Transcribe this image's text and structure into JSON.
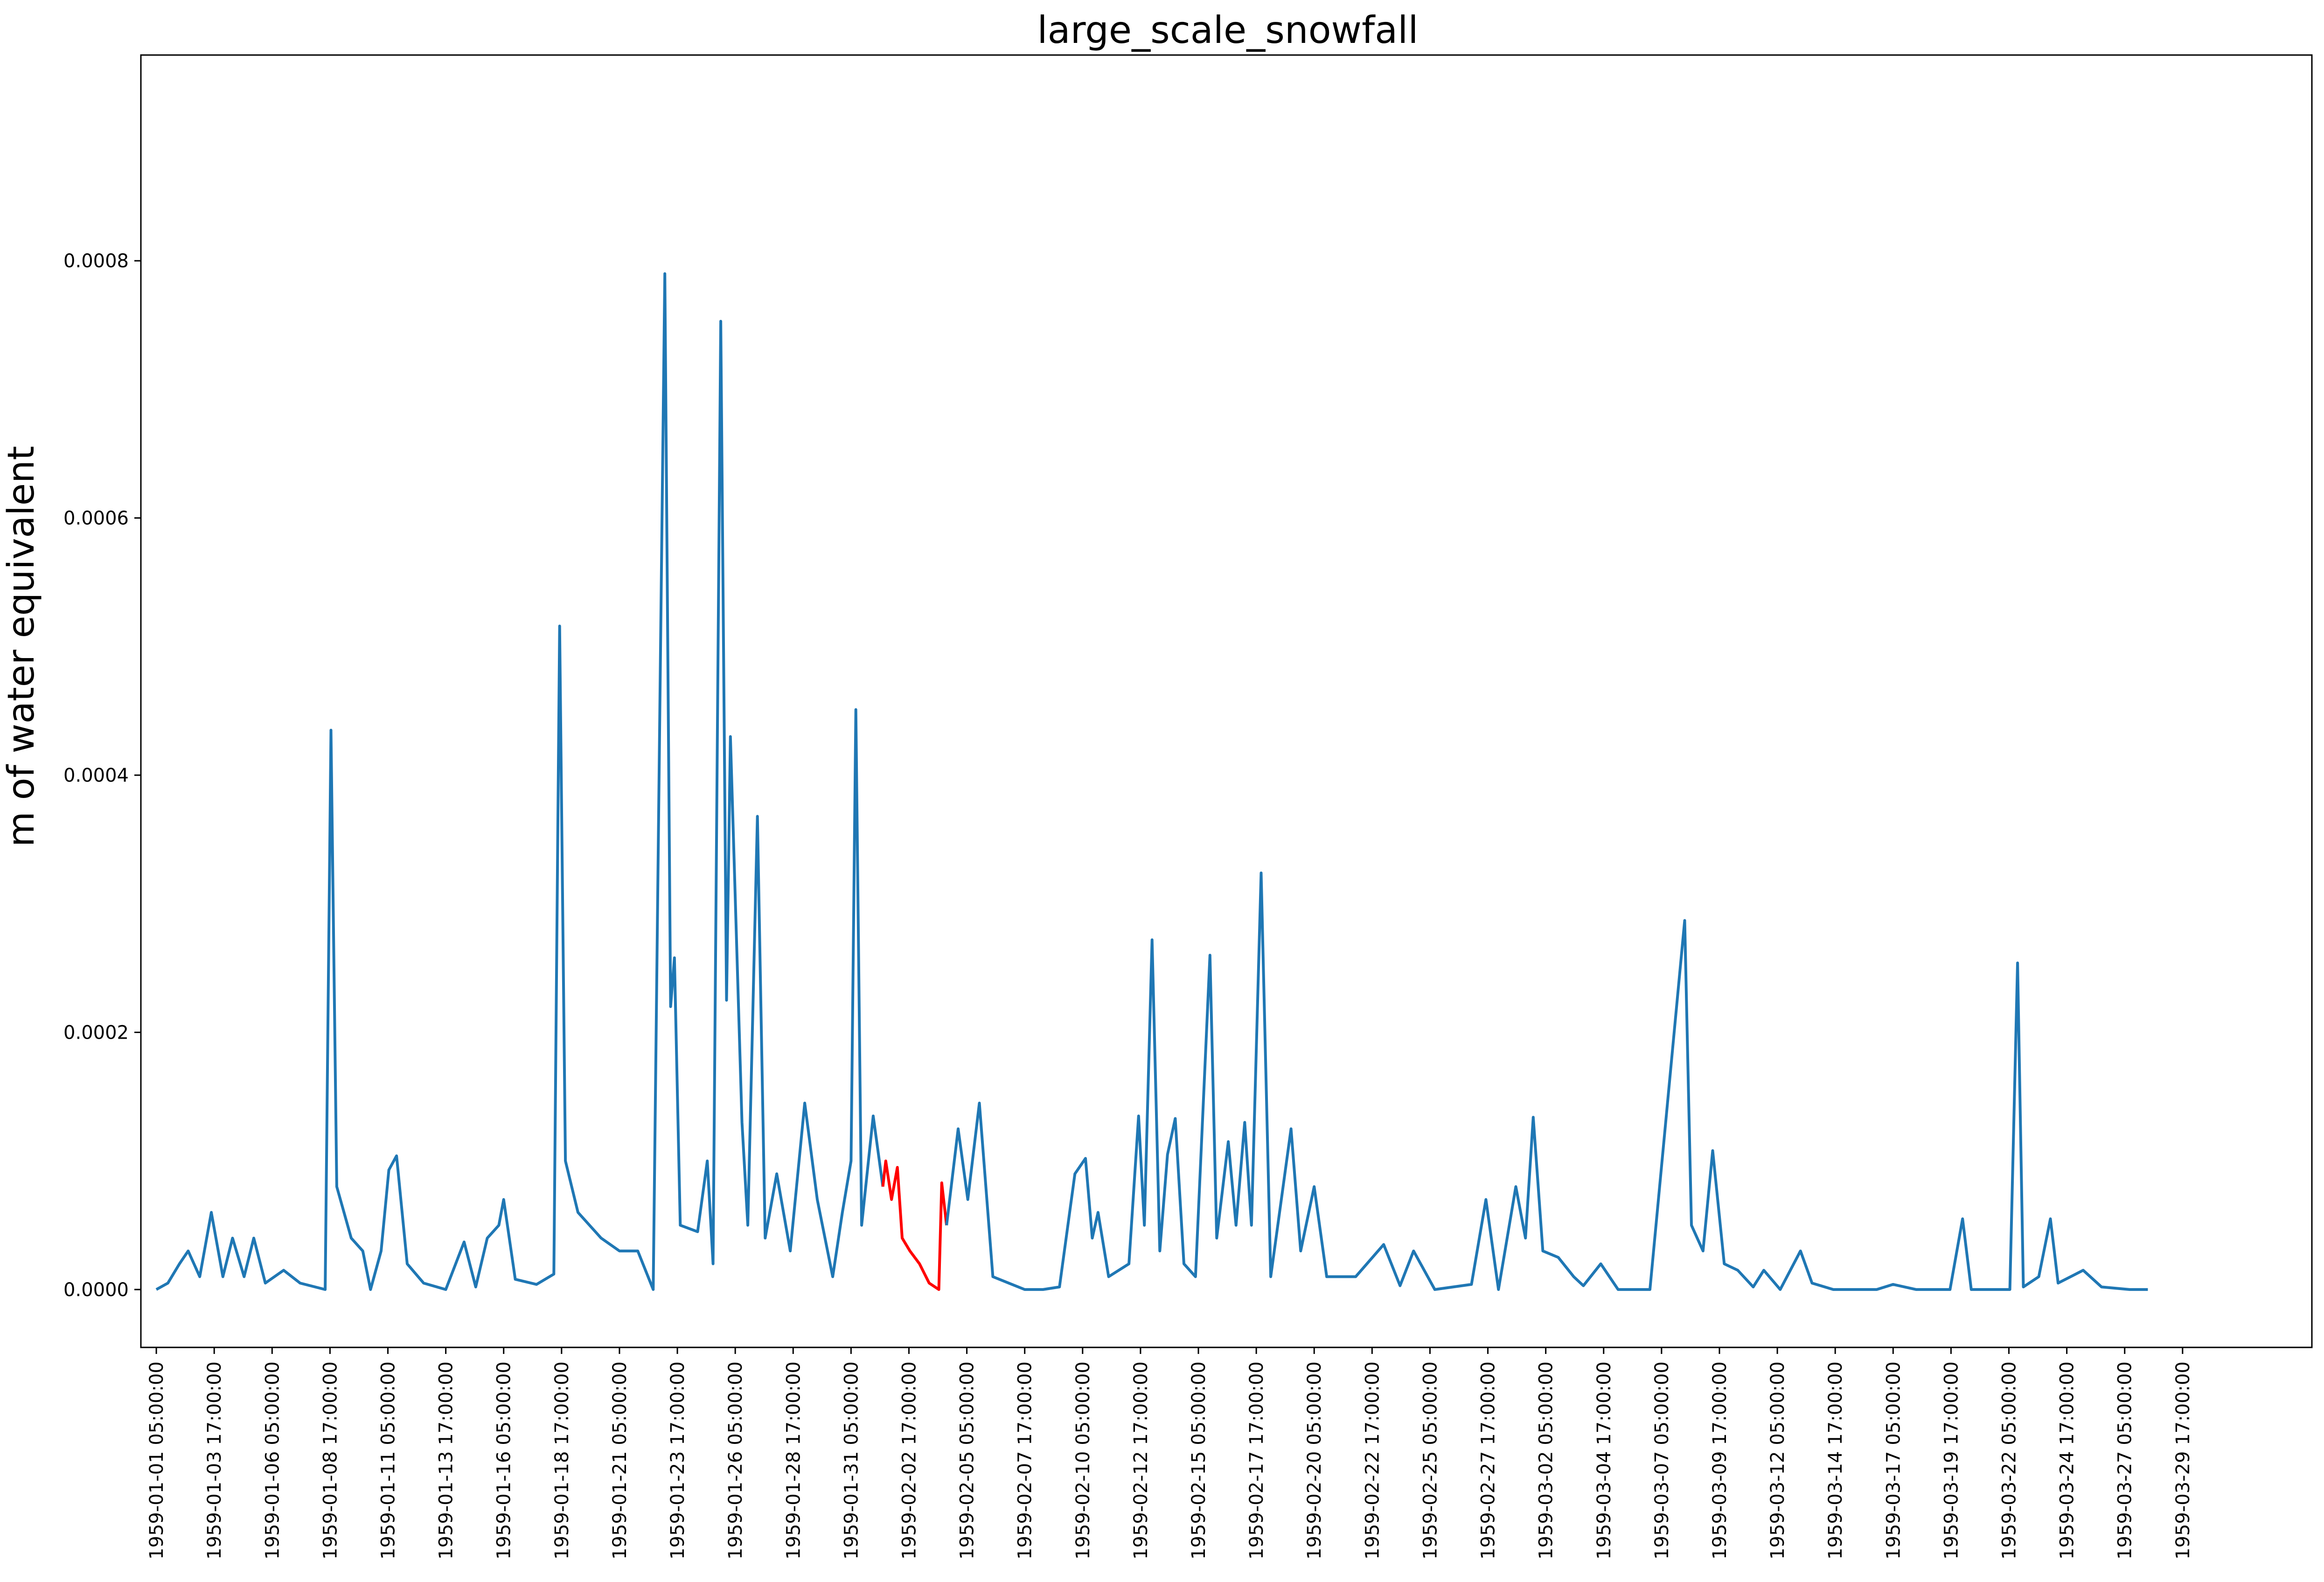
{
  "chart_data": {
    "type": "line",
    "title": "large_scale_snowfall",
    "xlabel": "",
    "ylabel": "m of water equivalent",
    "ylim": [
      -4.5e-05,
      0.00096
    ],
    "y_ticks": [
      "0.0000",
      "0.0002",
      "0.0004",
      "0.0006",
      "0.0008"
    ],
    "y_tick_values": [
      0,
      0.0002,
      0.0004,
      0.0006,
      0.0008
    ],
    "x_ticks": [
      "1959-01-01 05:00:00",
      "1959-01-03 17:00:00",
      "1959-01-06 05:00:00",
      "1959-01-08 17:00:00",
      "1959-01-11 05:00:00",
      "1959-01-13 17:00:00",
      "1959-01-16 05:00:00",
      "1959-01-18 17:00:00",
      "1959-01-21 05:00:00",
      "1959-01-23 17:00:00",
      "1959-01-26 05:00:00",
      "1959-01-28 17:00:00",
      "1959-01-31 05:00:00",
      "1959-02-02 17:00:00",
      "1959-02-05 05:00:00",
      "1959-02-07 17:00:00",
      "1959-02-10 05:00:00",
      "1959-02-12 17:00:00",
      "1959-02-15 05:00:00",
      "1959-02-17 17:00:00",
      "1959-02-20 05:00:00",
      "1959-02-22 17:00:00",
      "1959-02-25 05:00:00",
      "1959-02-27 17:00:00",
      "1959-03-02 05:00:00",
      "1959-03-04 17:00:00",
      "1959-03-07 05:00:00",
      "1959-03-09 17:00:00",
      "1959-03-12 05:00:00",
      "1959-03-14 17:00:00",
      "1959-03-17 05:00:00",
      "1959-03-19 17:00:00",
      "1959-03-22 05:00:00",
      "1959-03-24 17:00:00",
      "1959-03-27 05:00:00",
      "1959-03-29 17:00:00"
    ],
    "xlim": [
      "1958-12-31 13:00:00",
      "1959-04-04 07:00:00"
    ],
    "grid": false,
    "series": [
      {
        "color": "#1f77b4",
        "points": [
          [
            "1959-01-01 05:00",
            0
          ],
          [
            "1959-01-01 17:00",
            5e-06
          ],
          [
            "1959-01-02 05:00",
            2e-05
          ],
          [
            "1959-01-02 14:00",
            3e-05
          ],
          [
            "1959-01-03 02:00",
            1e-05
          ],
          [
            "1959-01-03 14:00",
            6e-05
          ],
          [
            "1959-01-04 02:00",
            1e-05
          ],
          [
            "1959-01-04 12:00",
            4e-05
          ],
          [
            "1959-01-05 00:00",
            1e-05
          ],
          [
            "1959-01-05 10:00",
            4e-05
          ],
          [
            "1959-01-05 22:00",
            5e-06
          ],
          [
            "1959-01-06 17:00",
            1.5e-05
          ],
          [
            "1959-01-07 10:00",
            5e-06
          ],
          [
            "1959-01-08 12:00",
            0
          ],
          [
            "1959-01-08 18:00",
            0.000435
          ],
          [
            "1959-01-09 00:00",
            8e-05
          ],
          [
            "1959-01-09 15:00",
            4e-05
          ],
          [
            "1959-01-10 03:00",
            3e-05
          ],
          [
            "1959-01-10 11:00",
            0
          ],
          [
            "1959-01-10 22:00",
            3e-05
          ],
          [
            "1959-01-11 06:00",
            9.3e-05
          ],
          [
            "1959-01-11 14:00",
            0.000104
          ],
          [
            "1959-01-12 01:00",
            2e-05
          ],
          [
            "1959-01-12 18:00",
            5e-06
          ],
          [
            "1959-01-13 17:00",
            0
          ],
          [
            "1959-01-14 12:00",
            3.7e-05
          ],
          [
            "1959-01-15 00:00",
            2e-06
          ],
          [
            "1959-01-15 12:00",
            4e-05
          ],
          [
            "1959-01-16 00:00",
            5e-05
          ],
          [
            "1959-01-16 05:00",
            7e-05
          ],
          [
            "1959-01-16 17:00",
            8e-06
          ],
          [
            "1959-01-17 15:00",
            4e-06
          ],
          [
            "1959-01-18 09:00",
            1.2e-05
          ],
          [
            "1959-01-18 15:00",
            0.000516
          ],
          [
            "1959-01-18 21:00",
            0.0001
          ],
          [
            "1959-01-19 10:00",
            6e-05
          ],
          [
            "1959-01-20 10:00",
            4e-05
          ],
          [
            "1959-01-21 05:00",
            3e-05
          ],
          [
            "1959-01-22 00:00",
            3e-05
          ],
          [
            "1959-01-22 16:00",
            0
          ],
          [
            "1959-01-23 04:00",
            0.00079
          ],
          [
            "1959-01-23 10:00",
            0.00022
          ],
          [
            "1959-01-23 14:00",
            0.000258
          ],
          [
            "1959-01-23 20:00",
            5e-05
          ],
          [
            "1959-01-24 14:00",
            4.5e-05
          ],
          [
            "1959-01-25 00:00",
            0.0001
          ],
          [
            "1959-01-25 06:00",
            2e-05
          ],
          [
            "1959-01-25 14:00",
            0.000753
          ],
          [
            "1959-01-25 20:00",
            0.000225
          ],
          [
            "1959-01-26 00:00",
            0.00043
          ],
          [
            "1959-01-26 12:00",
            0.00013
          ],
          [
            "1959-01-26 18:00",
            5e-05
          ],
          [
            "1959-01-27 04:00",
            0.000368
          ],
          [
            "1959-01-27 12:00",
            4e-05
          ],
          [
            "1959-01-28 00:00",
            9e-05
          ],
          [
            "1959-01-28 14:00",
            3e-05
          ],
          [
            "1959-01-29 05:00",
            0.000145
          ],
          [
            "1959-01-29 18:00",
            7e-05
          ],
          [
            "1959-01-30 10:00",
            1e-05
          ],
          [
            "1959-01-30 20:00",
            6e-05
          ],
          [
            "1959-01-31 05:00",
            0.0001
          ],
          [
            "1959-01-31 10:00",
            0.000451
          ],
          [
            "1959-01-31 16:00",
            5e-05
          ],
          [
            "1959-02-01 04:00",
            0.000135
          ],
          [
            "1959-02-01 14:00",
            8e-05
          ]
        ]
      },
      {
        "color": "#ff0000",
        "points": [
          [
            "1959-02-01 14:00",
            8e-05
          ],
          [
            "1959-02-01 17:00",
            0.0001
          ],
          [
            "1959-02-01 23:00",
            7e-05
          ],
          [
            "1959-02-02 05:00",
            9.5e-05
          ],
          [
            "1959-02-02 10:00",
            4e-05
          ],
          [
            "1959-02-02 18:00",
            3e-05
          ],
          [
            "1959-02-03 04:00",
            2e-05
          ],
          [
            "1959-02-03 14:00",
            5e-06
          ],
          [
            "1959-02-04 00:00",
            0
          ],
          [
            "1959-02-04 03:00",
            8.3e-05
          ],
          [
            "1959-02-04 08:00",
            5e-05
          ]
        ]
      },
      {
        "color": "#1f77b4",
        "points": [
          [
            "1959-02-04 08:00",
            5e-05
          ],
          [
            "1959-02-04 20:00",
            0.000125
          ],
          [
            "1959-02-05 06:00",
            7e-05
          ],
          [
            "1959-02-05 18:00",
            0.000145
          ],
          [
            "1959-02-06 08:00",
            1e-05
          ],
          [
            "1959-02-07 17:00",
            0
          ],
          [
            "1959-02-08 12:00",
            0
          ],
          [
            "1959-02-09 05:00",
            2e-06
          ],
          [
            "1959-02-09 21:00",
            9e-05
          ],
          [
            "1959-02-10 08:00",
            0.000102
          ],
          [
            "1959-02-10 15:00",
            4e-05
          ],
          [
            "1959-02-10 21:00",
            6e-05
          ],
          [
            "1959-02-11 08:00",
            1e-05
          ],
          [
            "1959-02-12 05:00",
            2e-05
          ],
          [
            "1959-02-12 15:00",
            0.000135
          ],
          [
            "1959-02-12 21:00",
            5e-05
          ],
          [
            "1959-02-13 05:00",
            0.000272
          ],
          [
            "1959-02-13 13:00",
            3e-05
          ],
          [
            "1959-02-13 21:00",
            0.000105
          ],
          [
            "1959-02-14 05:00",
            0.000133
          ],
          [
            "1959-02-14 14:00",
            2e-05
          ],
          [
            "1959-02-15 02:00",
            1e-05
          ],
          [
            "1959-02-15 17:00",
            0.00026
          ],
          [
            "1959-02-16 00:00",
            4e-05
          ],
          [
            "1959-02-16 12:00",
            0.000115
          ],
          [
            "1959-02-16 20:00",
            5e-05
          ],
          [
            "1959-02-17 05:00",
            0.00013
          ],
          [
            "1959-02-17 12:00",
            5e-05
          ],
          [
            "1959-02-17 22:00",
            0.000324
          ],
          [
            "1959-02-18 08:00",
            1e-05
          ],
          [
            "1959-02-19 05:00",
            0.000125
          ],
          [
            "1959-02-19 15:00",
            3e-05
          ],
          [
            "1959-02-20 05:00",
            8e-05
          ],
          [
            "1959-02-20 18:00",
            1e-05
          ],
          [
            "1959-02-22 00:00",
            1e-05
          ],
          [
            "1959-02-23 05:00",
            3.5e-05
          ],
          [
            "1959-02-23 22:00",
            3e-06
          ],
          [
            "1959-02-24 12:00",
            3e-05
          ],
          [
            "1959-02-25 10:00",
            0
          ],
          [
            "1959-02-27 00:00",
            4e-06
          ],
          [
            "1959-02-27 15:00",
            7e-05
          ],
          [
            "1959-02-28 04:00",
            0
          ],
          [
            "1959-02-28 22:00",
            8e-05
          ],
          [
            "1959-03-01 08:00",
            4e-05
          ],
          [
            "1959-03-01 16:00",
            0.000134
          ],
          [
            "1959-03-02 02:00",
            3e-05
          ],
          [
            "1959-03-02 18:00",
            2.5e-05
          ],
          [
            "1959-03-03 10:00",
            1e-05
          ],
          [
            "1959-03-03 20:00",
            3e-06
          ],
          [
            "1959-03-04 14:00",
            2e-05
          ],
          [
            "1959-03-05 08:00",
            0
          ],
          [
            "1959-03-06 17:00",
            0
          ],
          [
            "1959-03-08 05:00",
            0.000287
          ],
          [
            "1959-03-08 12:00",
            5e-05
          ],
          [
            "1959-03-09 00:00",
            3e-05
          ],
          [
            "1959-03-09 10:00",
            0.000108
          ],
          [
            "1959-03-09 22:00",
            2e-05
          ],
          [
            "1959-03-10 12:00",
            1.5e-05
          ],
          [
            "1959-03-11 04:00",
            2e-06
          ],
          [
            "1959-03-11 15:00",
            1.5e-05
          ],
          [
            "1959-03-12 08:00",
            0
          ],
          [
            "1959-03-13 05:00",
            3e-05
          ],
          [
            "1959-03-13 17:00",
            5e-06
          ],
          [
            "1959-03-14 15:00",
            0
          ],
          [
            "1959-03-16 12:00",
            0
          ],
          [
            "1959-03-17 05:00",
            4e-06
          ],
          [
            "1959-03-18 05:00",
            0
          ],
          [
            "1959-03-19 16:00",
            0
          ],
          [
            "1959-03-20 05:00",
            5.5e-05
          ],
          [
            "1959-03-20 14:00",
            0
          ],
          [
            "1959-03-22 06:00",
            0
          ],
          [
            "1959-03-22 14:00",
            0.000254
          ],
          [
            "1959-03-22 20:00",
            2e-06
          ],
          [
            "1959-03-23 12:00",
            1e-05
          ],
          [
            "1959-03-24 00:00",
            5.5e-05
          ],
          [
            "1959-03-24 08:00",
            5e-06
          ],
          [
            "1959-03-25 10:00",
            1.5e-05
          ],
          [
            "1959-03-26 05:00",
            2e-06
          ],
          [
            "1959-03-27 10:00",
            0
          ],
          [
            "1959-03-28 05:00",
            0
          ]
        ]
      }
    ]
  }
}
